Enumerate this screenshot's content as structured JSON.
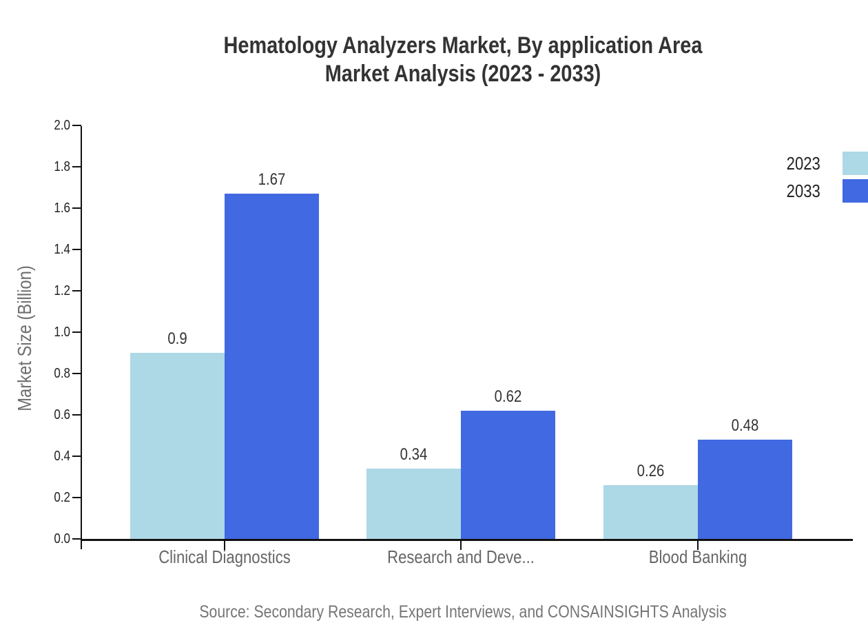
{
  "title": {
    "line1": "Hematology Analyzers Market, By application Area",
    "line2": "Market Analysis (2023 - 2033)"
  },
  "source": "Source: Secondary Research, Expert Interviews, and CONSAINSIGHTS Analysis",
  "chart_data": {
    "type": "bar",
    "title": "Hematology Analyzers Market, By application Area Market Analysis (2023 - 2033)",
    "categories": [
      "Clinical Diagnostics",
      "Research and Deve...",
      "Blood Banking"
    ],
    "series": [
      {
        "name": "2023",
        "color": "#ADD8E6",
        "values": [
          0.9,
          0.34,
          0.26
        ]
      },
      {
        "name": "2033",
        "color": "#4169E1",
        "values": [
          1.67,
          0.62,
          0.48
        ]
      }
    ],
    "xlabel": "",
    "ylabel": "Market Size (Billion)",
    "ylim": [
      0,
      2.0
    ],
    "ytick_step": 0.2,
    "grid": false,
    "legend_position": "top-right",
    "bar_value_labels": true,
    "axis_color": "#111111"
  }
}
